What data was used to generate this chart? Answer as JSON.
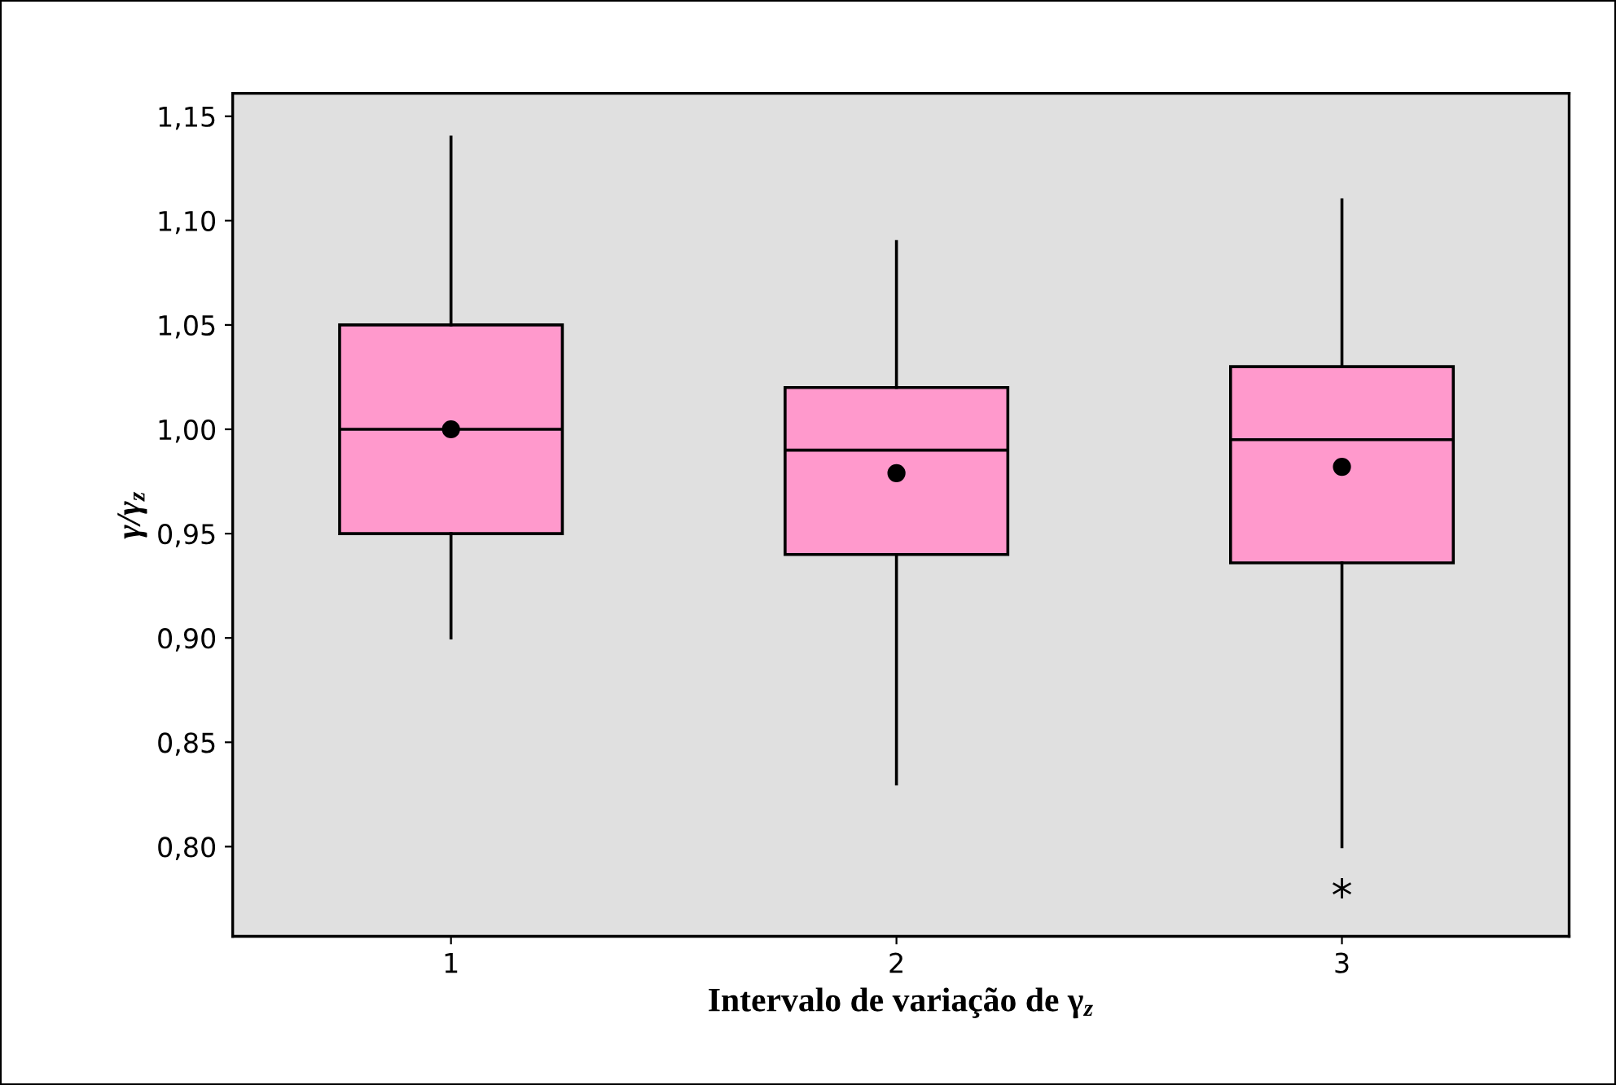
{
  "chart_data": {
    "type": "box",
    "xlabel": "Intervalo de variação de γ$_{z}$",
    "ylabel": "γ/γ$_{z}$",
    "categories": [
      "1",
      "2",
      "3"
    ],
    "boxes": [
      {
        "low": 0.9,
        "q1": 0.95,
        "median": 1.0,
        "q3": 1.05,
        "high": 1.14,
        "mean": 1.0
      },
      {
        "low": 0.83,
        "q1": 0.94,
        "median": 0.99,
        "q3": 1.02,
        "high": 1.09,
        "mean": 0.979
      },
      {
        "low": 0.8,
        "q1": 0.936,
        "median": 0.995,
        "q3": 1.03,
        "high": 1.11,
        "mean": 0.982,
        "outliers": [
          0.78
        ]
      }
    ],
    "color": "#ff99cc",
    "ylim": [
      0.757,
      1.161
    ],
    "yticks": [
      {
        "value": 0.8,
        "label": "0,80"
      },
      {
        "value": 0.85,
        "label": "0,85"
      },
      {
        "value": 0.9,
        "label": "0,90"
      },
      {
        "value": 0.95,
        "label": "0,95"
      },
      {
        "value": 1.0,
        "label": "1,00"
      },
      {
        "value": 1.05,
        "label": "1,05"
      },
      {
        "value": 1.1,
        "label": "1,10"
      },
      {
        "value": 1.15,
        "label": "1,15"
      }
    ],
    "grid": false,
    "legend": false
  }
}
